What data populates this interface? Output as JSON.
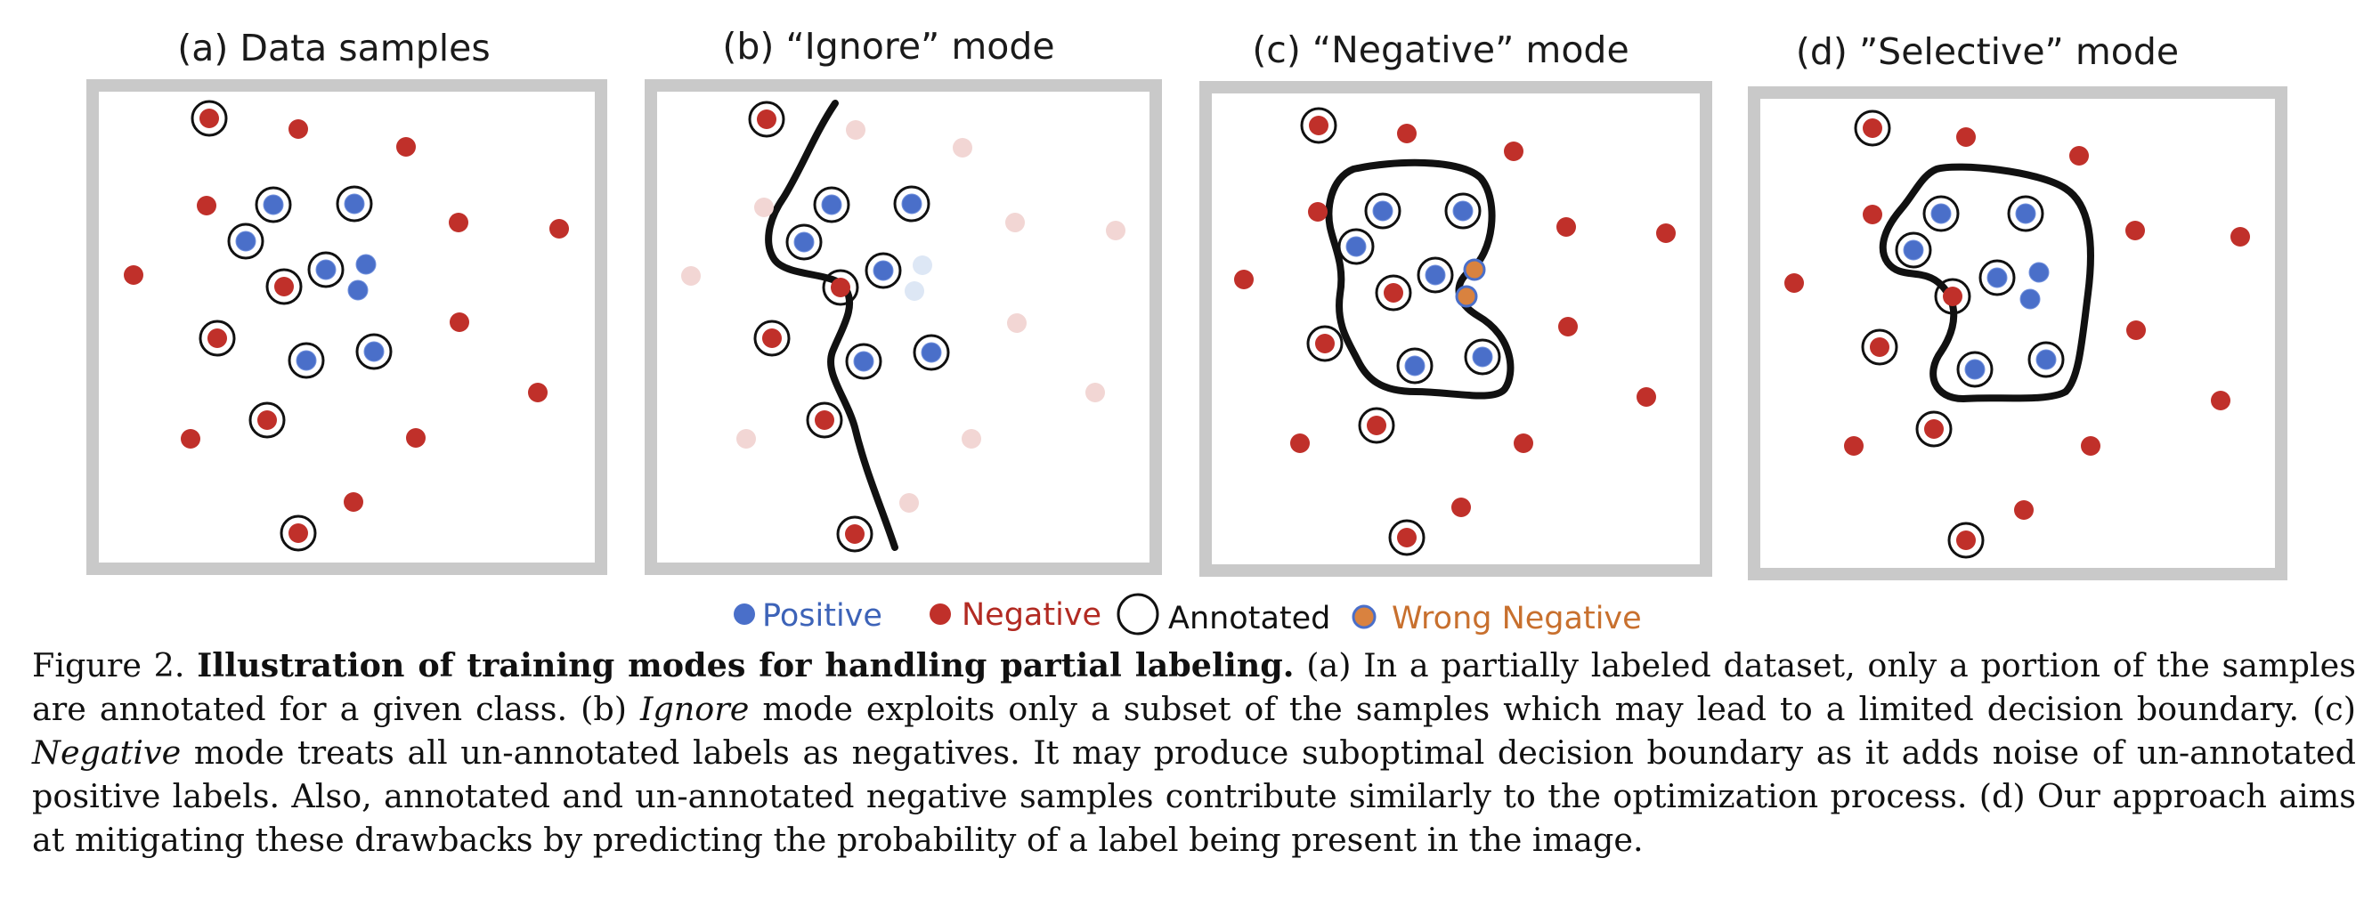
{
  "panels": [
    {
      "id": "a",
      "title": "(a) Data samples"
    },
    {
      "id": "b",
      "title": "(b) “Ignore” mode"
    },
    {
      "id": "c",
      "title": "(c) “Negative” mode"
    },
    {
      "id": "d",
      "title": "(d) ”Selective” mode"
    }
  ],
  "legend": {
    "positive": "Positive",
    "negative": "Negative",
    "annotated": "Annotated",
    "wrong_negative": "Wrong Negative"
  },
  "colors": {
    "positive": "#4a6fc9",
    "negative": "#c0302a",
    "negative_faded": "#f2d6d4",
    "positive_faded": "#dde7f5",
    "wrong_negative": "#d9823f",
    "frame": "#c9c9c9",
    "boundary": "#111111",
    "legend_negative_text": "#b22a22",
    "legend_positive_text": "#3d63b8",
    "legend_wrong_text": "#c8702e"
  },
  "caption": {
    "prefix": "Figure 2. ",
    "bold_title": "Illustration of training modes for handling partial labeling.",
    "part1": " (a) In a partially labeled dataset, only a portion of the samples are annotated for a given class. (b) ",
    "ignore_word": "Ignore",
    "part2": " mode exploits only a subset of the samples which may lead to a limited decision boundary. (c) ",
    "negative_word": "Negative",
    "part3": " mode treats all un-annotated labels as negatives. It may produce suboptimal decision boundary as it adds noise of un-annotated positive labels. Also, annotated and un-annotated negative samples contribute similarly to the optimization process. (d) Our approach aims at mitigating these drawbacks by predicting the probability of a label being present in the image."
  }
}
